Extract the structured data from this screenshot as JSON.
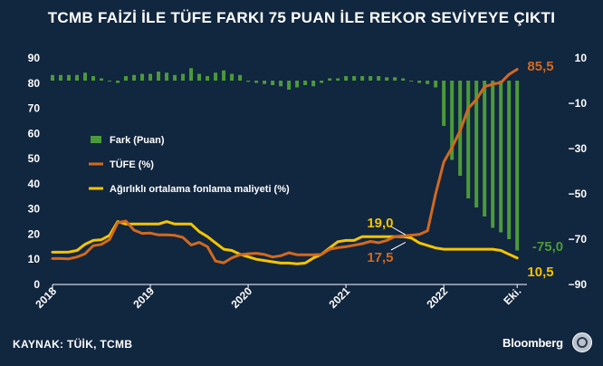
{
  "title": "TCMB FAİZİ İLE TÜFE FARKI 75 PUAN İLE REKOR SEVİYEYE ÇIKTI",
  "source": "KAYNAK: TÜİK, TCMB",
  "brand": "Bloomberg",
  "colors": {
    "background": "#11263f",
    "fark": "#4c9a3a",
    "tufe": "#d2691e",
    "fonlama": "#f5c400",
    "axis_text": "#ffffff"
  },
  "chart_data": {
    "type": "bar+line",
    "x_tick_labels": [
      "2018",
      "2019",
      "2020",
      "2021",
      "2022",
      "Eki."
    ],
    "x_tick_positions": [
      2018.0,
      2019.0,
      2020.0,
      2021.0,
      2022.0,
      2022.75
    ],
    "xlim": [
      2018.0,
      2022.85
    ],
    "left_axis": {
      "ticks": [
        0,
        10,
        20,
        30,
        40,
        50,
        60,
        70,
        80,
        90
      ],
      "ylim": [
        0,
        90
      ]
    },
    "right_axis": {
      "ticks": [
        10,
        -10,
        -30,
        -50,
        -70,
        -90
      ],
      "ylim": [
        -90,
        10
      ]
    },
    "legend": {
      "position": "center-left",
      "items": [
        "Fark (Puan)",
        "TÜFE (%)",
        "Ağırlıklı ortalama fonlama maliyeti (%)"
      ]
    },
    "annotations": [
      {
        "text": "85,5",
        "series": "TÜFE (%)",
        "x": 2022.75,
        "y": 85.5
      },
      {
        "text": "19,0",
        "series": "Ağırlıklı ortalama fonlama maliyeti (%)",
        "x": 2021.35,
        "y": 19.0
      },
      {
        "text": "17,5",
        "series": "TÜFE (%)",
        "x": 2021.35,
        "y": 17.5
      },
      {
        "text": "-75,0",
        "series": "Fark (Puan)",
        "x": 2022.75,
        "y": -75.0
      },
      {
        "text": "10,5",
        "series": "Ağırlıklı ortalama fonlama maliyeti (%)",
        "x": 2022.75,
        "y": 10.5
      }
    ],
    "series": [
      {
        "name": "Fark (Puan)",
        "type": "bar",
        "axis": "right",
        "x": [
          2018.0,
          2018.0833,
          2018.1667,
          2018.25,
          2018.3333,
          2018.4167,
          2018.5,
          2018.5833,
          2018.6667,
          2018.75,
          2018.8333,
          2018.9167,
          2019.0,
          2019.0833,
          2019.1667,
          2019.25,
          2019.3333,
          2019.4167,
          2019.5,
          2019.5833,
          2019.6667,
          2019.75,
          2019.8333,
          2019.9167,
          2020.0,
          2020.0833,
          2020.1667,
          2020.25,
          2020.3333,
          2020.4167,
          2020.5,
          2020.5833,
          2020.6667,
          2020.75,
          2020.8333,
          2020.9167,
          2021.0,
          2021.0833,
          2021.1667,
          2021.25,
          2021.3333,
          2021.4167,
          2021.5,
          2021.5833,
          2021.6667,
          2021.75,
          2021.8333,
          2021.9167,
          2022.0,
          2022.0833,
          2022.1667,
          2022.25,
          2022.3333,
          2022.4167,
          2022.5,
          2022.5833,
          2022.6667,
          2022.75
        ],
        "values": [
          2.5,
          2.5,
          2.5,
          2.5,
          3.5,
          2.0,
          1.0,
          0.0,
          -1.0,
          2.0,
          2.5,
          3.0,
          3.0,
          4.0,
          3.5,
          2.5,
          3.0,
          5.5,
          3.0,
          2.0,
          3.5,
          4.5,
          3.0,
          2.5,
          -0.5,
          -1.0,
          -1.5,
          -2.0,
          -2.5,
          -4.0,
          -3.0,
          -2.0,
          -2.5,
          -1.0,
          1.0,
          1.0,
          2.0,
          2.0,
          2.0,
          2.0,
          2.0,
          1.5,
          1.5,
          1.0,
          0.0,
          -1.0,
          -1.5,
          -3.0,
          -20.0,
          -35.0,
          -42.0,
          -52.0,
          -56.0,
          -60.0,
          -65.0,
          -67.0,
          -70.0,
          -75.0
        ]
      },
      {
        "name": "TÜFE (%)",
        "type": "line",
        "axis": "left",
        "x": [
          2018.0,
          2018.0833,
          2018.1667,
          2018.25,
          2018.3333,
          2018.4167,
          2018.5,
          2018.5833,
          2018.6667,
          2018.75,
          2018.8333,
          2018.9167,
          2019.0,
          2019.0833,
          2019.1667,
          2019.25,
          2019.3333,
          2019.4167,
          2019.5,
          2019.5833,
          2019.6667,
          2019.75,
          2019.8333,
          2019.9167,
          2020.0,
          2020.0833,
          2020.1667,
          2020.25,
          2020.3333,
          2020.4167,
          2020.5,
          2020.5833,
          2020.6667,
          2020.75,
          2020.8333,
          2020.9167,
          2021.0,
          2021.0833,
          2021.1667,
          2021.25,
          2021.3333,
          2021.4167,
          2021.5,
          2021.5833,
          2021.6667,
          2021.75,
          2021.8333,
          2021.9167,
          2022.0,
          2022.0833,
          2022.1667,
          2022.25,
          2022.3333,
          2022.4167,
          2022.5,
          2022.5833,
          2022.6667,
          2022.75
        ],
        "values": [
          10.3,
          10.3,
          10.2,
          10.9,
          12.2,
          15.4,
          15.9,
          17.9,
          24.5,
          25.2,
          21.6,
          20.3,
          20.4,
          19.7,
          19.7,
          19.5,
          18.7,
          15.7,
          16.7,
          15.0,
          9.3,
          8.6,
          10.6,
          11.8,
          12.2,
          12.4,
          11.9,
          10.9,
          11.4,
          12.6,
          11.8,
          11.8,
          11.8,
          11.9,
          14.0,
          14.6,
          15.0,
          15.6,
          16.2,
          17.1,
          16.6,
          17.5,
          19.0,
          19.3,
          19.6,
          19.9,
          21.3,
          36.1,
          48.7,
          54.4,
          61.1,
          70.0,
          73.5,
          78.6,
          79.6,
          80.2,
          83.5,
          85.5
        ]
      },
      {
        "name": "Ağırlıklı ortalama fonlama maliyeti (%)",
        "type": "line",
        "axis": "left",
        "x": [
          2018.0,
          2018.0833,
          2018.1667,
          2018.25,
          2018.3333,
          2018.4167,
          2018.5,
          2018.5833,
          2018.6667,
          2018.75,
          2018.8333,
          2018.9167,
          2019.0,
          2019.0833,
          2019.1667,
          2019.25,
          2019.3333,
          2019.4167,
          2019.5,
          2019.5833,
          2019.6667,
          2019.75,
          2019.8333,
          2019.9167,
          2020.0,
          2020.0833,
          2020.1667,
          2020.25,
          2020.3333,
          2020.4167,
          2020.5,
          2020.5833,
          2020.6667,
          2020.75,
          2020.8333,
          2020.9167,
          2021.0,
          2021.0833,
          2021.1667,
          2021.25,
          2021.3333,
          2021.4167,
          2021.5,
          2021.5833,
          2021.6667,
          2021.75,
          2021.8333,
          2021.9167,
          2022.0,
          2022.0833,
          2022.1667,
          2022.25,
          2022.3333,
          2022.4167,
          2022.5,
          2022.5833,
          2022.6667,
          2022.75
        ],
        "values": [
          12.8,
          12.8,
          12.9,
          13.5,
          16.0,
          17.5,
          17.8,
          19.5,
          25.0,
          24.0,
          24.0,
          24.0,
          24.0,
          24.0,
          25.0,
          24.0,
          24.0,
          24.0,
          21.0,
          19.0,
          16.5,
          14.0,
          13.5,
          12.0,
          11.0,
          10.0,
          9.5,
          9.0,
          8.5,
          8.5,
          8.2,
          8.5,
          10.5,
          12.0,
          14.5,
          17.0,
          17.5,
          17.5,
          19.0,
          19.0,
          19.0,
          19.0,
          19.0,
          19.0,
          18.5,
          16.5,
          15.5,
          14.5,
          14.0,
          14.0,
          14.0,
          14.0,
          14.0,
          14.0,
          14.0,
          13.5,
          12.0,
          10.5
        ]
      }
    ]
  }
}
